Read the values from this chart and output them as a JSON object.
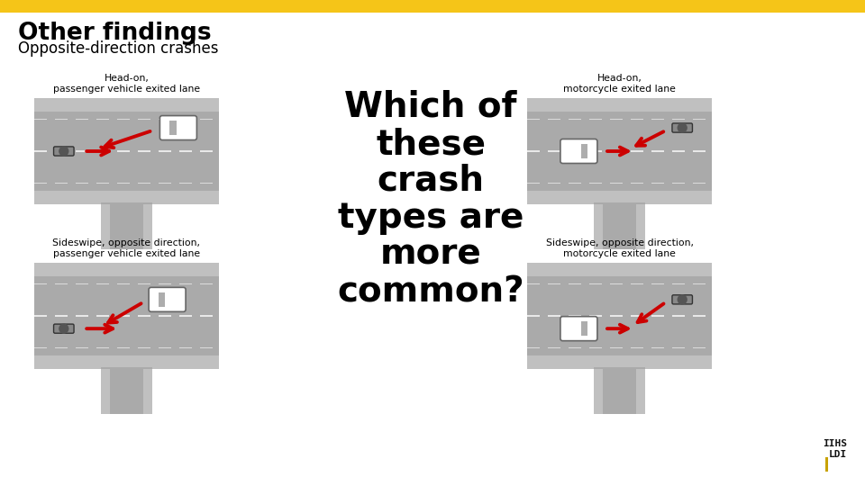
{
  "title": "Other findings",
  "subtitle": "Opposite-direction crashes",
  "title_color": "#000000",
  "subtitle_color": "#000000",
  "background_color": "#ffffff",
  "top_bar_color": "#F5C518",
  "road_color": "#aaaaaa",
  "road_stripe_color": "#c0c0c0",
  "road_line_color": "#e8e8e8",
  "arrow_color": "#cc0000",
  "question_text": "Which of\nthese\ncrash\ntypes are\nmore\ncommon?",
  "question_color": "#000000",
  "labels": [
    "Head-on,\npassenger vehicle exited lane",
    "Head-on,\nmotorcycle exited lane",
    "Sideswipe, opposite direction,\npassenger vehicle exited lane",
    "Sideswipe, opposite direction,\nmotorcycle exited lane"
  ],
  "top_bar_height": 14,
  "fig_width": 9.6,
  "fig_height": 5.4,
  "fig_dpi": 100
}
